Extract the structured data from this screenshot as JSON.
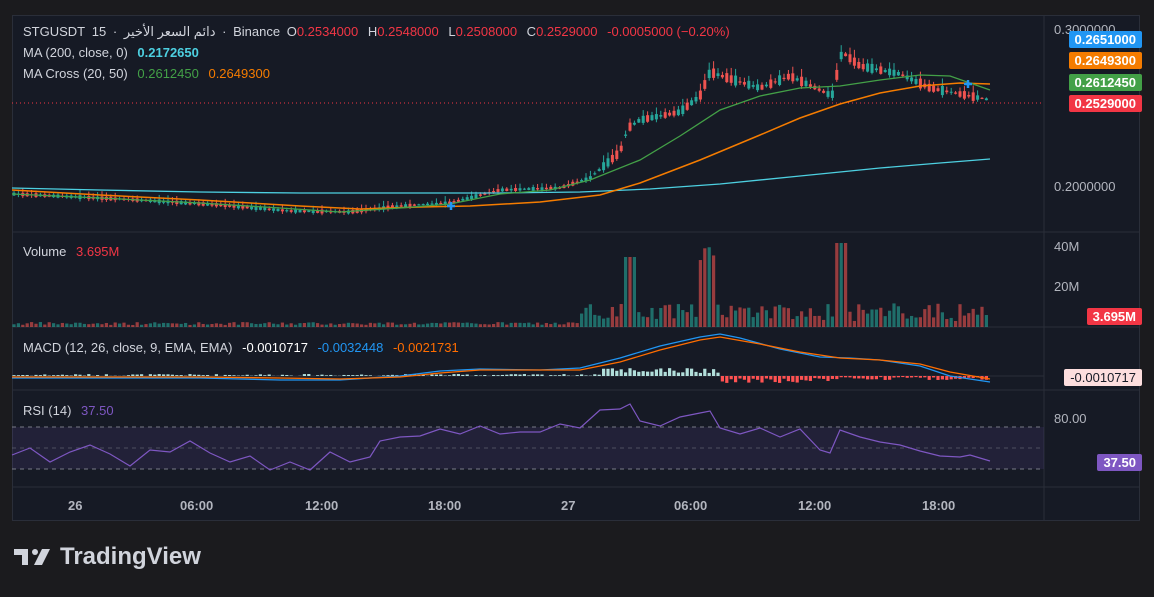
{
  "symbol": "STGUSDT",
  "interval": "15",
  "separator": "·",
  "title_localized": "دائم السعر الأخير",
  "exchange": "Binance",
  "ohlc": {
    "open_label": "O",
    "open": "0.2534000",
    "high_label": "H",
    "high": "0.2548000",
    "low_label": "L",
    "low": "0.2508000",
    "close_label": "C",
    "close": "0.2529000",
    "change": "-0.0005000 (−0.20%)"
  },
  "ma200": {
    "label": "MA (200, close, 0)",
    "value": "0.2172650"
  },
  "ma_cross": {
    "label": "MA Cross (20, 50)",
    "value_fast": "0.2612450",
    "value_slow": "0.2649300"
  },
  "volume": {
    "label": "Volume",
    "value": "3.695M"
  },
  "macd": {
    "label": "MACD (12, 26, close, 9, EMA, EMA)",
    "hist": "-0.0010717",
    "macd": "-0.0032448",
    "signal": "-0.0021731"
  },
  "rsi": {
    "label": "RSI (14)",
    "value": "37.50"
  },
  "price_scale": {
    "ticks": [
      "0.3000000",
      "0.2000000"
    ],
    "tags": [
      {
        "text": "0.2651000",
        "color": "#2196f3"
      },
      {
        "text": "0.2649300",
        "color": "#f57c00"
      },
      {
        "text": "0.2612450",
        "color": "#43a047"
      },
      {
        "text": "0.2529000",
        "color": "#f23645"
      }
    ]
  },
  "volume_scale": {
    "ticks": [
      "40M",
      "20M"
    ],
    "tag": "3.695M"
  },
  "macd_scale": {
    "tag": "-0.0010717"
  },
  "rsi_scale": {
    "ticks": [
      "80.00"
    ],
    "tag": "37.50"
  },
  "time_axis": [
    "26",
    "06:00",
    "12:00",
    "18:00",
    "27",
    "06:00",
    "12:00",
    "18:00"
  ],
  "brand": "TradingView",
  "colors": {
    "up": "#26a69a",
    "down": "#ef5350",
    "ma200": "#4dd0e1",
    "ma_fast": "#43a047",
    "ma_slow": "#f57c00",
    "macd": "#2196f3",
    "signal": "#ff6d00",
    "rsi": "#7e57c2"
  }
}
